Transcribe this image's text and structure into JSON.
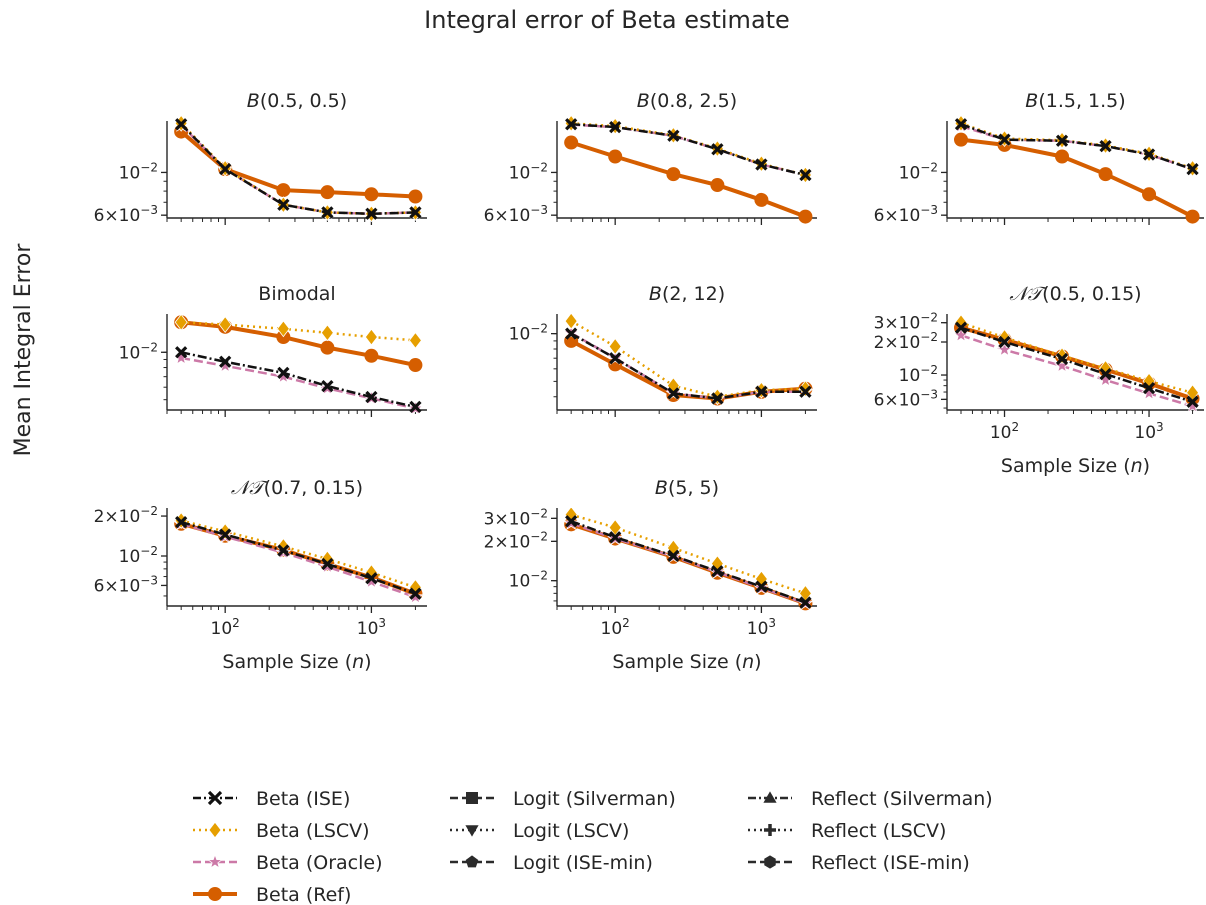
{
  "figure": {
    "title": "Integral error of Beta estimate",
    "ylabel": "Mean Integral Error",
    "xlabel": "Sample Size (n)"
  },
  "colors": {
    "beta_ise": "#111111",
    "beta_lscv": "#e69f00",
    "beta_oracle": "#cc79a7",
    "beta_ref": "#d55e00",
    "logit_reflect": "#2b2b2b"
  },
  "legend": [
    {
      "label": "Beta (ISE)",
      "marker": "x-icon",
      "dash": "dashdot"
    },
    {
      "label": "Beta (LSCV)",
      "marker": "diamond-icon",
      "dash": "dotted"
    },
    {
      "label": "Beta (Oracle)",
      "marker": "star-icon",
      "dash": "dashed"
    },
    {
      "label": "Beta (Ref)",
      "marker": "circle-icon",
      "dash": "solid"
    },
    {
      "label": "Logit (Silverman)",
      "marker": "square-icon",
      "dash": "dashed"
    },
    {
      "label": "Logit (LSCV)",
      "marker": "triangle-down-icon",
      "dash": "dotted"
    },
    {
      "label": "Logit (ISE-min)",
      "marker": "pentagon-icon",
      "dash": "dashed"
    },
    {
      "label": "Reflect (Silverman)",
      "marker": "triangle-up-icon",
      "dash": "dashdot"
    },
    {
      "label": "Reflect (LSCV)",
      "marker": "plus-icon",
      "dash": "dotted"
    },
    {
      "label": "Reflect (ISE-min)",
      "marker": "hexagon-icon",
      "dash": "dashed"
    }
  ],
  "chart_data": [
    {
      "type": "line",
      "title": "B(0.5, 0.5)",
      "xscale": "log",
      "yscale": "log",
      "xlim": [
        40,
        2400
      ],
      "ylim": [
        0.0058,
        0.0185
      ],
      "yticks": [
        {
          "v": 0.01,
          "label": "10^-2"
        },
        {
          "v": 0.006,
          "label": "6×10^-3"
        }
      ],
      "xticklabels_shown": false,
      "x": [
        50,
        100,
        250,
        500,
        1000,
        2000
      ],
      "series": [
        {
          "name": "Beta (ISE)",
          "values": [
            0.0178,
            0.0104,
            0.0068,
            0.0062,
            0.0061,
            0.0062
          ]
        },
        {
          "name": "Beta (LSCV)",
          "values": [
            0.018,
            0.0105,
            0.0068,
            0.0062,
            0.0061,
            0.0062
          ]
        },
        {
          "name": "Beta (Oracle)",
          "values": [
            0.0176,
            0.0104,
            0.0068,
            0.0062,
            0.0061,
            0.0062
          ]
        },
        {
          "name": "Beta (Ref)",
          "values": [
            0.0163,
            0.0104,
            0.0081,
            0.0079,
            0.0077,
            0.0075
          ]
        }
      ]
    },
    {
      "type": "line",
      "title": "B(0.8, 2.5)",
      "xscale": "log",
      "yscale": "log",
      "xlim": [
        40,
        2400
      ],
      "ylim": [
        0.0058,
        0.0185
      ],
      "yticks": [
        {
          "v": 0.01,
          "label": "10^-2"
        },
        {
          "v": 0.006,
          "label": "6×10^-3"
        }
      ],
      "xticklabels_shown": false,
      "x": [
        50,
        100,
        250,
        500,
        1000,
        2000
      ],
      "series": [
        {
          "name": "Beta (ISE)",
          "values": [
            0.0178,
            0.0172,
            0.0155,
            0.0132,
            0.011,
            0.0097
          ]
        },
        {
          "name": "Beta (LSCV)",
          "values": [
            0.018,
            0.0174,
            0.0156,
            0.0133,
            0.0111,
            0.0097
          ]
        },
        {
          "name": "Beta (Oracle)",
          "values": [
            0.0177,
            0.0172,
            0.0155,
            0.0132,
            0.011,
            0.0097
          ]
        },
        {
          "name": "Beta (Ref)",
          "values": [
            0.0143,
            0.0121,
            0.0098,
            0.0086,
            0.0072,
            0.0059
          ]
        }
      ]
    },
    {
      "type": "line",
      "title": "B(1.5, 1.5)",
      "xscale": "log",
      "yscale": "log",
      "xlim": [
        40,
        2400
      ],
      "ylim": [
        0.0058,
        0.0185
      ],
      "yticks": [
        {
          "v": 0.01,
          "label": "10^-2"
        },
        {
          "v": 0.006,
          "label": "6×10^-3"
        }
      ],
      "xticklabels_shown": false,
      "x": [
        50,
        100,
        250,
        500,
        1000,
        2000
      ],
      "series": [
        {
          "name": "Beta (ISE)",
          "values": [
            0.0178,
            0.0148,
            0.0146,
            0.0137,
            0.0124,
            0.0104
          ]
        },
        {
          "name": "Beta (LSCV)",
          "values": [
            0.018,
            0.015,
            0.0147,
            0.0138,
            0.0125,
            0.0105
          ]
        },
        {
          "name": "Beta (Oracle)",
          "values": [
            0.0174,
            0.0148,
            0.0146,
            0.0137,
            0.0124,
            0.0104
          ]
        },
        {
          "name": "Beta (Ref)",
          "values": [
            0.0148,
            0.0139,
            0.0121,
            0.0098,
            0.0077,
            0.0059
          ]
        }
      ]
    },
    {
      "type": "line",
      "title": "Bimodal",
      "xscale": "log",
      "yscale": "log",
      "xlim": [
        40,
        2400
      ],
      "ylim": [
        0.0043,
        0.0175
      ],
      "yticks": [
        {
          "v": 0.01,
          "label": "10^-2"
        }
      ],
      "xticklabels_shown": false,
      "x": [
        50,
        100,
        250,
        500,
        1000,
        2000
      ],
      "series": [
        {
          "name": "Beta (ISE)",
          "values": [
            0.01,
            0.0087,
            0.0074,
            0.0061,
            0.0052,
            0.0045
          ]
        },
        {
          "name": "Beta (LSCV)",
          "values": [
            0.0155,
            0.015,
            0.0141,
            0.0133,
            0.0125,
            0.0119
          ]
        },
        {
          "name": "Beta (Oracle)",
          "values": [
            0.0092,
            0.0082,
            0.007,
            0.0059,
            0.0051,
            0.0044
          ]
        },
        {
          "name": "Beta (Ref)",
          "values": [
            0.0155,
            0.0145,
            0.0125,
            0.0107,
            0.0095,
            0.0083
          ]
        }
      ]
    },
    {
      "type": "line",
      "title": "B(2, 12)",
      "xscale": "log",
      "yscale": "log",
      "xlim": [
        40,
        2400
      ],
      "ylim": [
        0.0033,
        0.0133
      ],
      "yticks": [
        {
          "v": 0.01,
          "label": "10^-2"
        }
      ],
      "xticklabels_shown": false,
      "x": [
        50,
        100,
        250,
        500,
        1000,
        2000
      ],
      "series": [
        {
          "name": "Beta (ISE)",
          "values": [
            0.01,
            0.007,
            0.0042,
            0.0039,
            0.0043,
            0.0043
          ]
        },
        {
          "name": "Beta (LSCV)",
          "values": [
            0.012,
            0.0083,
            0.0047,
            0.004,
            0.0044,
            0.0045
          ]
        },
        {
          "name": "Beta (Oracle)",
          "values": [
            0.0101,
            0.007,
            0.0042,
            0.0039,
            0.0043,
            0.0043
          ]
        },
        {
          "name": "Beta (Ref)",
          "values": [
            0.009,
            0.0064,
            0.0041,
            0.0039,
            0.0043,
            0.0045
          ]
        }
      ]
    },
    {
      "type": "line",
      "title": "NT(0.5, 0.15)",
      "xscale": "log",
      "yscale": "log",
      "xlim": [
        40,
        2400
      ],
      "ylim": [
        0.0048,
        0.036
      ],
      "yticks": [
        {
          "v": 0.03,
          "label": "3×10^-2"
        },
        {
          "v": 0.02,
          "label": "2×10^-2"
        },
        {
          "v": 0.01,
          "label": "10^-2"
        },
        {
          "v": 0.006,
          "label": "6×10^-3"
        }
      ],
      "xticks": [
        {
          "v": 100,
          "label": "10^2"
        },
        {
          "v": 1000,
          "label": "10^3"
        }
      ],
      "xticklabels_shown": true,
      "x": [
        50,
        100,
        250,
        500,
        1000,
        2000
      ],
      "series": [
        {
          "name": "Beta (ISE)",
          "values": [
            0.027,
            0.02,
            0.014,
            0.0102,
            0.0076,
            0.0057
          ]
        },
        {
          "name": "Beta (LSCV)",
          "values": [
            0.03,
            0.022,
            0.015,
            0.0115,
            0.0088,
            0.0069
          ]
        },
        {
          "name": "Beta (Oracle)",
          "values": [
            0.023,
            0.017,
            0.0121,
            0.009,
            0.0068,
            0.0052
          ]
        },
        {
          "name": "Beta (Ref)",
          "values": [
            0.027,
            0.021,
            0.0148,
            0.0112,
            0.0084,
            0.0061
          ]
        }
      ]
    },
    {
      "type": "line",
      "title": "NT(0.7, 0.15)",
      "xscale": "log",
      "yscale": "log",
      "xlim": [
        40,
        2400
      ],
      "ylim": [
        0.0042,
        0.023
      ],
      "yticks": [
        {
          "v": 0.02,
          "label": "2×10^-2"
        },
        {
          "v": 0.01,
          "label": "10^-2"
        },
        {
          "v": 0.006,
          "label": "6×10^-3"
        }
      ],
      "xticks": [
        {
          "v": 100,
          "label": "10^2"
        },
        {
          "v": 1000,
          "label": "10^3"
        }
      ],
      "xticklabels_shown": true,
      "x": [
        50,
        100,
        250,
        500,
        1000,
        2000
      ],
      "series": [
        {
          "name": "Beta (ISE)",
          "values": [
            0.018,
            0.0145,
            0.011,
            0.0087,
            0.0068,
            0.0052
          ]
        },
        {
          "name": "Beta (LSCV)",
          "values": [
            0.0185,
            0.0153,
            0.0118,
            0.0095,
            0.0075,
            0.0058
          ]
        },
        {
          "name": "Beta (Oracle)",
          "values": [
            0.0175,
            0.014,
            0.0106,
            0.0083,
            0.0064,
            0.0049
          ]
        },
        {
          "name": "Beta (Ref)",
          "values": [
            0.0175,
            0.0142,
            0.0111,
            0.0087,
            0.0069,
            0.0052
          ]
        }
      ]
    },
    {
      "type": "line",
      "title": "B(5, 5)",
      "xscale": "log",
      "yscale": "log",
      "xlim": [
        40,
        2400
      ],
      "ylim": [
        0.0064,
        0.036
      ],
      "yticks": [
        {
          "v": 0.03,
          "label": "3×10^-2"
        },
        {
          "v": 0.02,
          "label": "2×10^-2"
        },
        {
          "v": 0.01,
          "label": "10^-2"
        }
      ],
      "xticks": [
        {
          "v": 100,
          "label": "10^2"
        },
        {
          "v": 1000,
          "label": "10^3"
        }
      ],
      "xticklabels_shown": true,
      "x": [
        50,
        100,
        250,
        500,
        1000,
        2000
      ],
      "series": [
        {
          "name": "Beta (ISE)",
          "values": [
            0.0285,
            0.0215,
            0.0155,
            0.0118,
            0.009,
            0.0068
          ]
        },
        {
          "name": "Beta (LSCV)",
          "values": [
            0.032,
            0.0255,
            0.0178,
            0.0135,
            0.0103,
            0.008
          ]
        },
        {
          "name": "Beta (Oracle)",
          "values": [
            0.0275,
            0.021,
            0.0153,
            0.0116,
            0.0088,
            0.0067
          ]
        },
        {
          "name": "Beta (Ref)",
          "values": [
            0.027,
            0.021,
            0.0152,
            0.0115,
            0.0088,
            0.0067
          ]
        }
      ]
    }
  ]
}
